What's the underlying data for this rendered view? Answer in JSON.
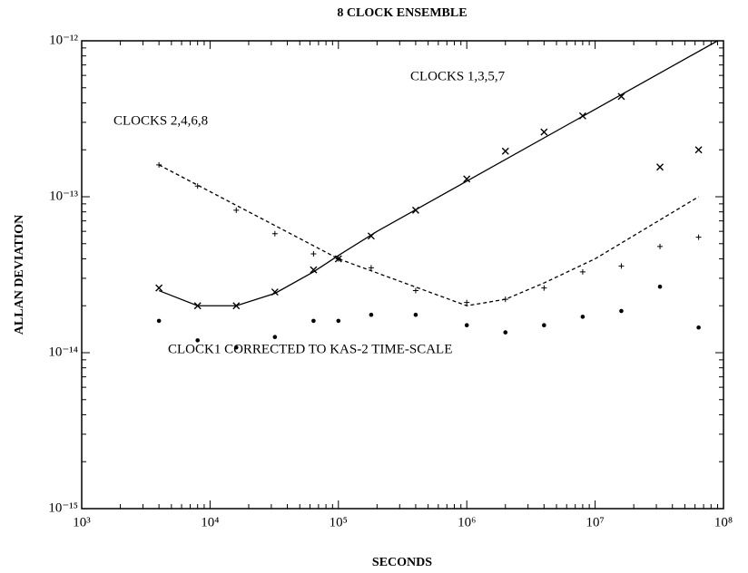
{
  "chart_data": {
    "type": "scatter",
    "title": "8 CLOCK ENSEMBLE",
    "x_label": "SECONDS",
    "y_label": "ALLAN DEVIATION",
    "log_x": true,
    "log_y": true,
    "grid": false,
    "color": "#000000",
    "xlim": [
      1000,
      100000000
    ],
    "ylim": [
      1e-15,
      1e-12
    ],
    "xticks": [
      {
        "value": 1000,
        "label": "10³"
      },
      {
        "value": 10000,
        "label": "10⁴"
      },
      {
        "value": 100000,
        "label": "10⁵"
      },
      {
        "value": 1000000,
        "label": "10⁶"
      },
      {
        "value": 10000000,
        "label": "10⁷"
      },
      {
        "value": 100000000,
        "label": "10⁸"
      }
    ],
    "yticks": [
      {
        "value": 1e-15,
        "label": "10⁻¹⁵"
      },
      {
        "value": 1e-14,
        "label": "10⁻¹⁴"
      },
      {
        "value": 1e-13,
        "label": "10⁻¹³"
      },
      {
        "value": 1e-12,
        "label": "10⁻¹²"
      }
    ],
    "x": [
      4000,
      8000,
      16000,
      32000,
      64000,
      100000,
      180000,
      400000,
      1000000,
      2000000,
      4000000,
      8000000,
      16000000,
      32000000,
      64000000
    ],
    "series": [
      {
        "name": "CLOCKS 1,3,5,7",
        "marker": "x",
        "values": [
          2.6e-14,
          2e-14,
          2e-14,
          2.45e-14,
          3.4e-14,
          4e-14,
          5.6e-14,
          8.2e-14,
          1.3e-13,
          1.96e-13,
          2.6e-13,
          3.3e-13,
          4.4e-13,
          1.55e-13,
          2e-13
        ],
        "fit": {
          "dash": false,
          "x": [
            4000,
            8000,
            16000,
            32000,
            64000,
            100000,
            200000,
            90000000
          ],
          "values": [
            2.5e-14,
            2e-14,
            2e-14,
            2.4e-14,
            3.3e-14,
            4.2e-14,
            6e-14,
            1e-12
          ]
        }
      },
      {
        "name": "CLOCKS 2,4,6,8",
        "marker": "plus",
        "values": [
          1.6e-13,
          1.17e-13,
          8.2e-14,
          5.8e-14,
          4.3e-14,
          4e-14,
          3.5e-14,
          2.5e-14,
          2.1e-14,
          2.2e-14,
          2.6e-14,
          3.3e-14,
          3.6e-14,
          4.8e-14,
          5.5e-14
        ],
        "fit": {
          "dash": true,
          "x": [
            4000,
            100000,
            1000000,
            2000000,
            4000000,
            10000000,
            64000000
          ],
          "values": [
            1.6e-13,
            4e-14,
            2e-14,
            2.2e-14,
            2.8e-14,
            4e-14,
            1e-13
          ]
        }
      },
      {
        "name": "CLOCK1 CORRECTED TO KAS-2 TIME-SCALE",
        "marker": "dot",
        "values": [
          1.6e-14,
          1.2e-14,
          1.08e-14,
          1.26e-14,
          1.6e-14,
          1.6e-14,
          1.75e-14,
          1.75e-14,
          1.5e-14,
          1.35e-14,
          1.5e-14,
          1.7e-14,
          1.85e-14,
          2.65e-14,
          1.45e-14
        ]
      }
    ]
  }
}
